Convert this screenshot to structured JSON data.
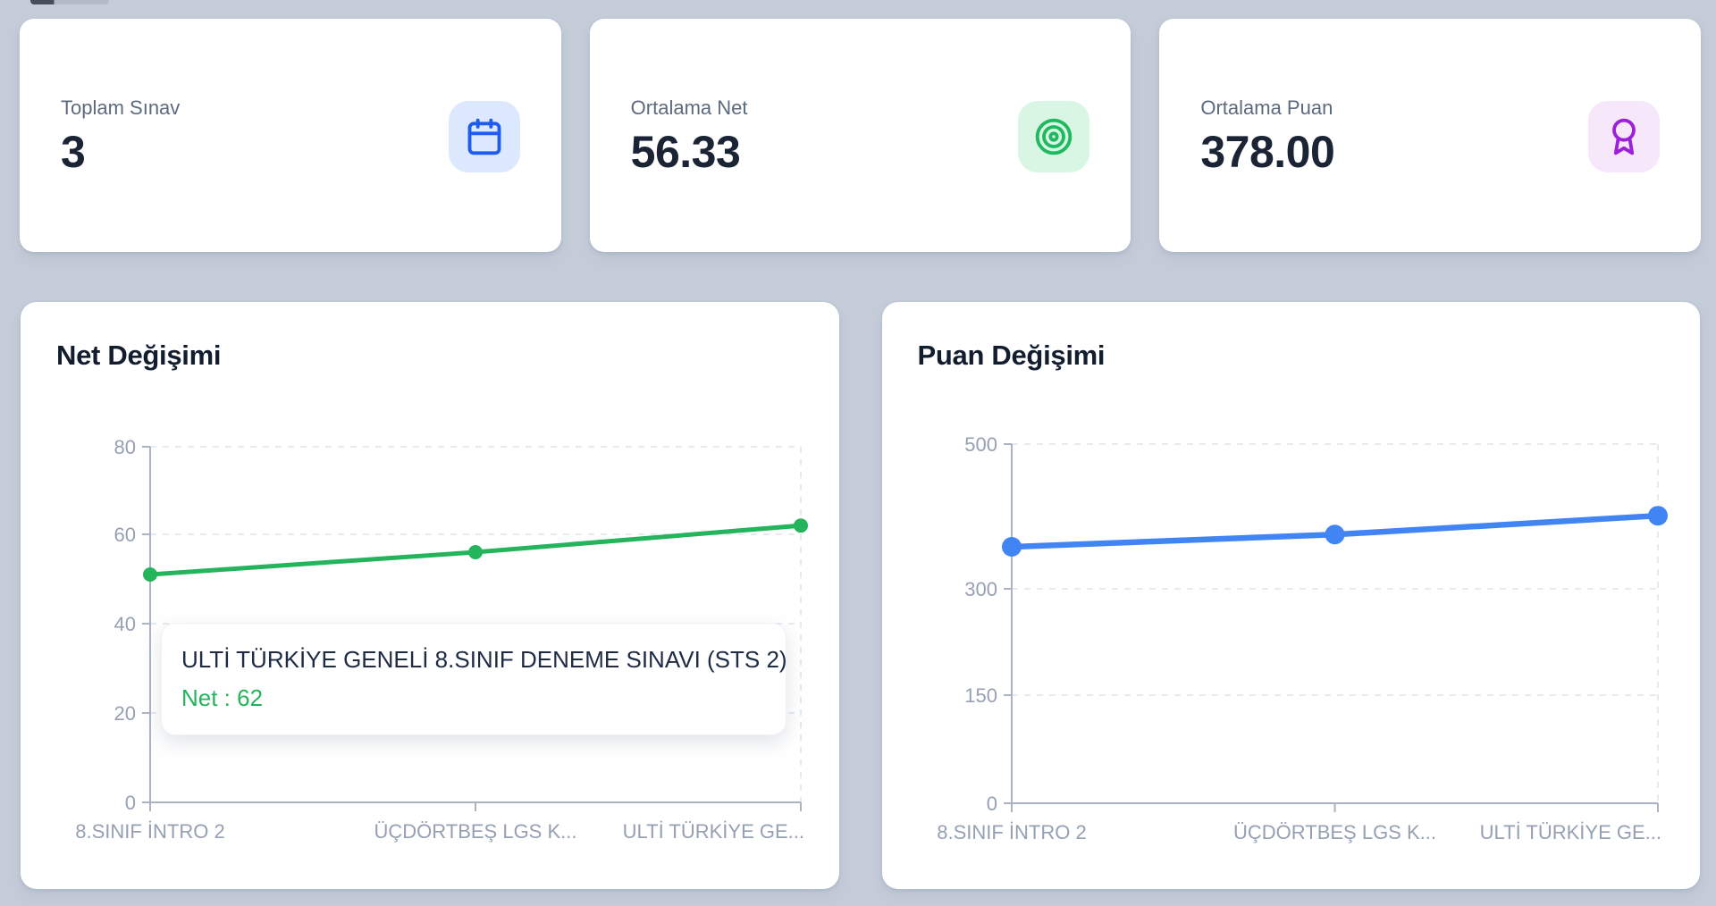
{
  "page_background": "#c5cdd9",
  "stat_cards": [
    {
      "label": "Toplam Sınav",
      "value": "3",
      "icon": "calendar-icon",
      "icon_color": "#1e5bef",
      "icon_bg": "#dbe8fd"
    },
    {
      "label": "Ortalama Net",
      "value": "56.33",
      "icon": "target-icon",
      "icon_color": "#1fba5f",
      "icon_bg": "#d9f6e5"
    },
    {
      "label": "Ortalama Puan",
      "value": "378.00",
      "icon": "award-icon",
      "icon_color": "#9c20da",
      "icon_bg": "#f6e7fb"
    }
  ],
  "chart_data": [
    {
      "type": "line",
      "title": "Net Değişimi",
      "categories": [
        "8.SINIF İNTRO 2",
        "ÜÇDÖRTBEŞ LGS K...",
        "ULTİ TÜRKİYE GE..."
      ],
      "series": [
        {
          "name": "Net",
          "values": [
            51,
            56,
            62
          ]
        }
      ],
      "yticks": [
        0,
        20,
        40,
        60,
        80
      ],
      "ylim": [
        0,
        80
      ],
      "color": "#24b45c",
      "grid": "dashed-horizontal",
      "legend": "none",
      "tooltip": {
        "title": "ULTİ TÜRKİYE GENELİ 8.SINIF DENEME SINAVI (STS 2)",
        "text": "Net : 62"
      }
    },
    {
      "type": "line",
      "title": "Puan Değişimi",
      "categories": [
        "8.SINIF İNTRO 2",
        "ÜÇDÖRTBEŞ LGS K...",
        "ULTİ TÜRKİYE GE..."
      ],
      "series": [
        {
          "name": "Puan",
          "values": [
            358,
            375,
            401
          ]
        }
      ],
      "yticks": [
        0,
        150,
        300,
        500
      ],
      "ylim": [
        0,
        500
      ],
      "color": "#4184f4",
      "grid": "dashed-horizontal",
      "legend": "none"
    }
  ]
}
